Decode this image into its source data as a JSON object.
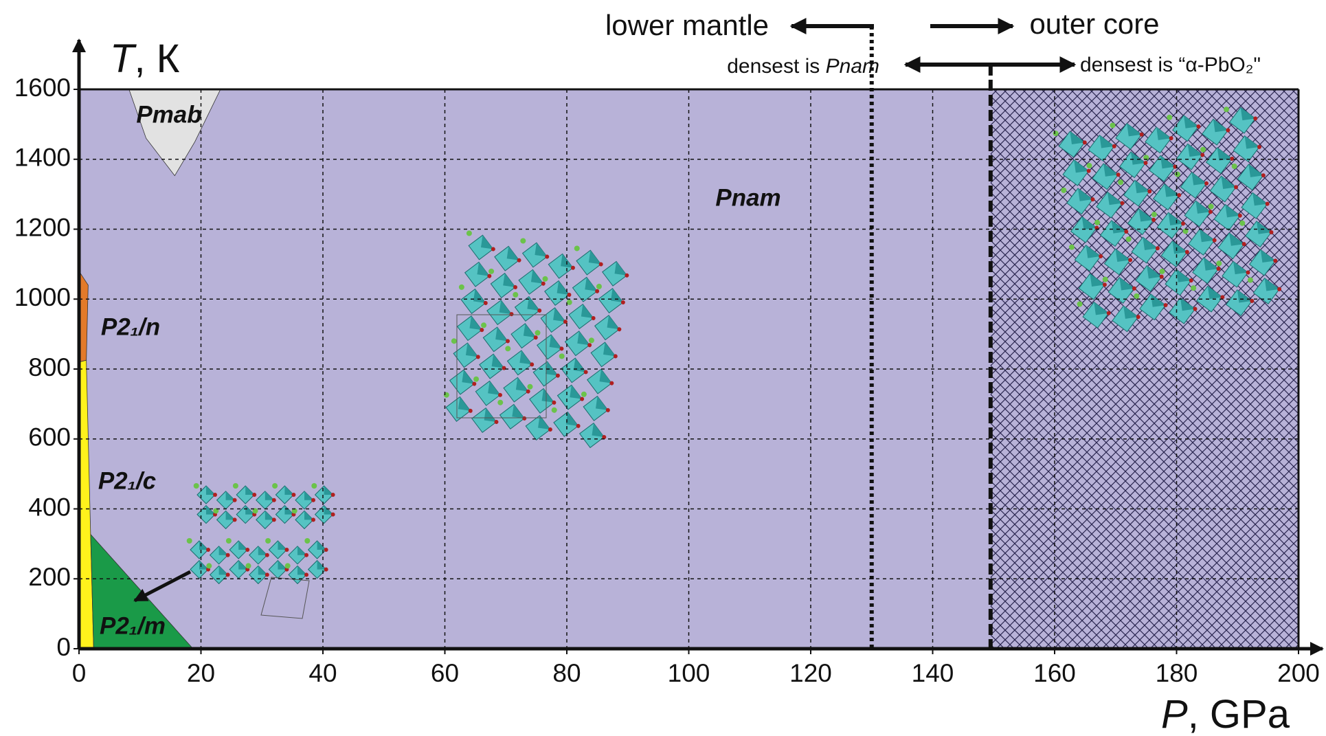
{
  "chart_data": {
    "type": "phase-diagram",
    "xlabel": {
      "symbol": "P",
      "unit": ", GPa"
    },
    "ylabel": {
      "symbol": "T",
      "unit": ", К"
    },
    "xlim": [
      0,
      200
    ],
    "ylim": [
      0,
      1600
    ],
    "xticks": [
      0,
      20,
      40,
      60,
      80,
      100,
      120,
      140,
      160,
      180,
      200
    ],
    "yticks": [
      0,
      200,
      400,
      600,
      800,
      1000,
      1200,
      1400,
      1600
    ],
    "grid": true,
    "regions": [
      {
        "label": "Pnam",
        "color": "#b8b2d8",
        "points": [
          [
            0,
            0
          ],
          [
            0,
            1600
          ],
          [
            200,
            1600
          ],
          [
            200,
            0
          ]
        ]
      },
      {
        "color": "#b8b2d8",
        "hatch": true,
        "points": [
          [
            149.5,
            0
          ],
          [
            149.5,
            1600
          ],
          [
            200,
            1600
          ],
          [
            200,
            0
          ]
        ]
      },
      {
        "label": "Pmab",
        "color": "#e2e2e2",
        "points": [
          [
            8.2,
            1600
          ],
          [
            23.2,
            1600
          ],
          [
            19,
            1450
          ],
          [
            15.7,
            1353
          ],
          [
            11,
            1460
          ]
        ]
      },
      {
        "label": "P2₁/n",
        "color": "#e37a2a",
        "points": [
          [
            0,
            820
          ],
          [
            0,
            1080
          ],
          [
            1.5,
            1040
          ],
          [
            1.2,
            825
          ]
        ]
      },
      {
        "label": "P2₁/c",
        "color": "#fff21c",
        "points": [
          [
            0,
            0
          ],
          [
            0,
            820
          ],
          [
            1.2,
            825
          ],
          [
            1.9,
            327
          ],
          [
            2.4,
            0
          ]
        ]
      },
      {
        "label": "P2₁/m",
        "color": "#1a9a48",
        "points": [
          [
            2.4,
            0
          ],
          [
            1.9,
            327
          ],
          [
            18.7,
            0
          ]
        ]
      }
    ],
    "boundaries": [
      {
        "x": 130,
        "style": "dotted"
      },
      {
        "x": 149.5,
        "style": "dashed"
      }
    ],
    "annotations": {
      "lower_mantle": "lower mantle",
      "outer_core": "outer core",
      "densest_left": {
        "text": "densest is ",
        "emph": "Pnam"
      },
      "densest_right": "densest  is “α-PbO₂\""
    }
  }
}
